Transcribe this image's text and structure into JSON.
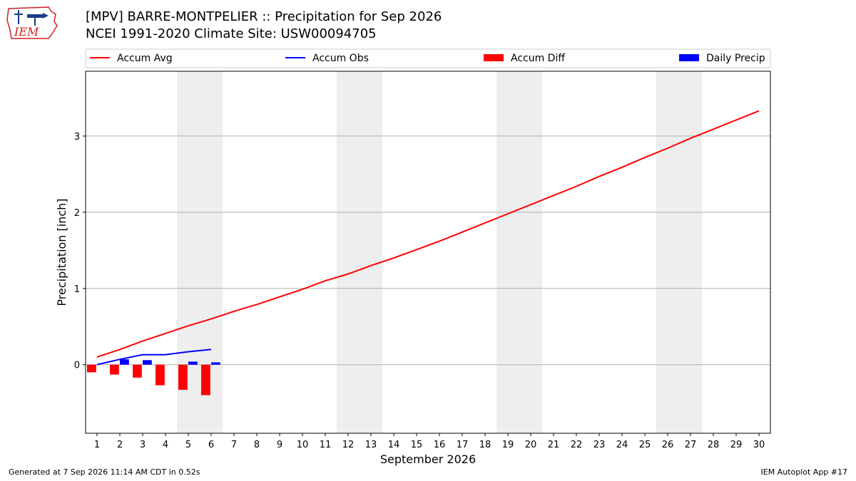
{
  "header": {
    "title": "[MPV] BARRE-MONTPELIER :: Precipitation for Sep 2026",
    "subtitle": "NCEI 1991-2020 Climate Site: USW00094705",
    "logo_text": "IEM"
  },
  "footer": {
    "generated": "Generated at 7 Sep 2026 11:14 AM CDT in 0.52s",
    "app": "IEM Autoplot App #17"
  },
  "colors": {
    "avg": "#ff0000",
    "obs": "#0000ff",
    "diff": "#ff0000",
    "daily": "#0000ff",
    "weekend": "#eeeeee",
    "grid": "#b0b0b0"
  },
  "chart_data": {
    "type": "line",
    "xlabel": "September 2026",
    "ylabel": "Precipitation [inch]",
    "x": [
      1,
      2,
      3,
      4,
      5,
      6,
      7,
      8,
      9,
      10,
      11,
      12,
      13,
      14,
      15,
      16,
      17,
      18,
      19,
      20,
      21,
      22,
      23,
      24,
      25,
      26,
      27,
      28,
      29,
      30
    ],
    "xlim": [
      0.5,
      30.5
    ],
    "ylim": [
      -0.9,
      3.85
    ],
    "yticks": [
      0,
      1,
      2,
      3
    ],
    "grid": "horizontal",
    "legend": {
      "placement": "top",
      "entries": [
        "Accum Avg",
        "Accum Obs",
        "Accum Diff",
        "Daily Precip"
      ]
    },
    "weekend_bands": [
      [
        4.5,
        6.5
      ],
      [
        11.5,
        13.5
      ],
      [
        18.5,
        20.5
      ],
      [
        25.5,
        27.5
      ]
    ],
    "series": [
      {
        "name": "Accum Avg",
        "kind": "line",
        "x": [
          1,
          2,
          3,
          4,
          5,
          6,
          7,
          8,
          9,
          10,
          11,
          12,
          13,
          14,
          15,
          16,
          17,
          18,
          19,
          20,
          21,
          22,
          23,
          24,
          25,
          26,
          27,
          28,
          29,
          30
        ],
        "values": [
          0.1,
          0.2,
          0.31,
          0.41,
          0.51,
          0.6,
          0.7,
          0.79,
          0.89,
          0.99,
          1.1,
          1.19,
          1.3,
          1.4,
          1.51,
          1.62,
          1.74,
          1.86,
          1.98,
          2.1,
          2.22,
          2.34,
          2.47,
          2.59,
          2.72,
          2.84,
          2.97,
          3.09,
          3.21,
          3.33
        ]
      },
      {
        "name": "Accum Obs",
        "kind": "line",
        "x": [
          1,
          2,
          3,
          4,
          5,
          6
        ],
        "values": [
          0.0,
          0.07,
          0.13,
          0.13,
          0.17,
          0.2
        ]
      },
      {
        "name": "Accum Diff",
        "kind": "bar",
        "x": [
          1,
          2,
          3,
          4,
          5,
          6
        ],
        "values": [
          -0.1,
          -0.13,
          -0.17,
          -0.27,
          -0.33,
          -0.4
        ]
      },
      {
        "name": "Daily Precip",
        "kind": "bar",
        "x": [
          1,
          2,
          3,
          4,
          5,
          6
        ],
        "values": [
          0.0,
          0.07,
          0.06,
          0.0,
          0.04,
          0.03
        ]
      }
    ]
  }
}
